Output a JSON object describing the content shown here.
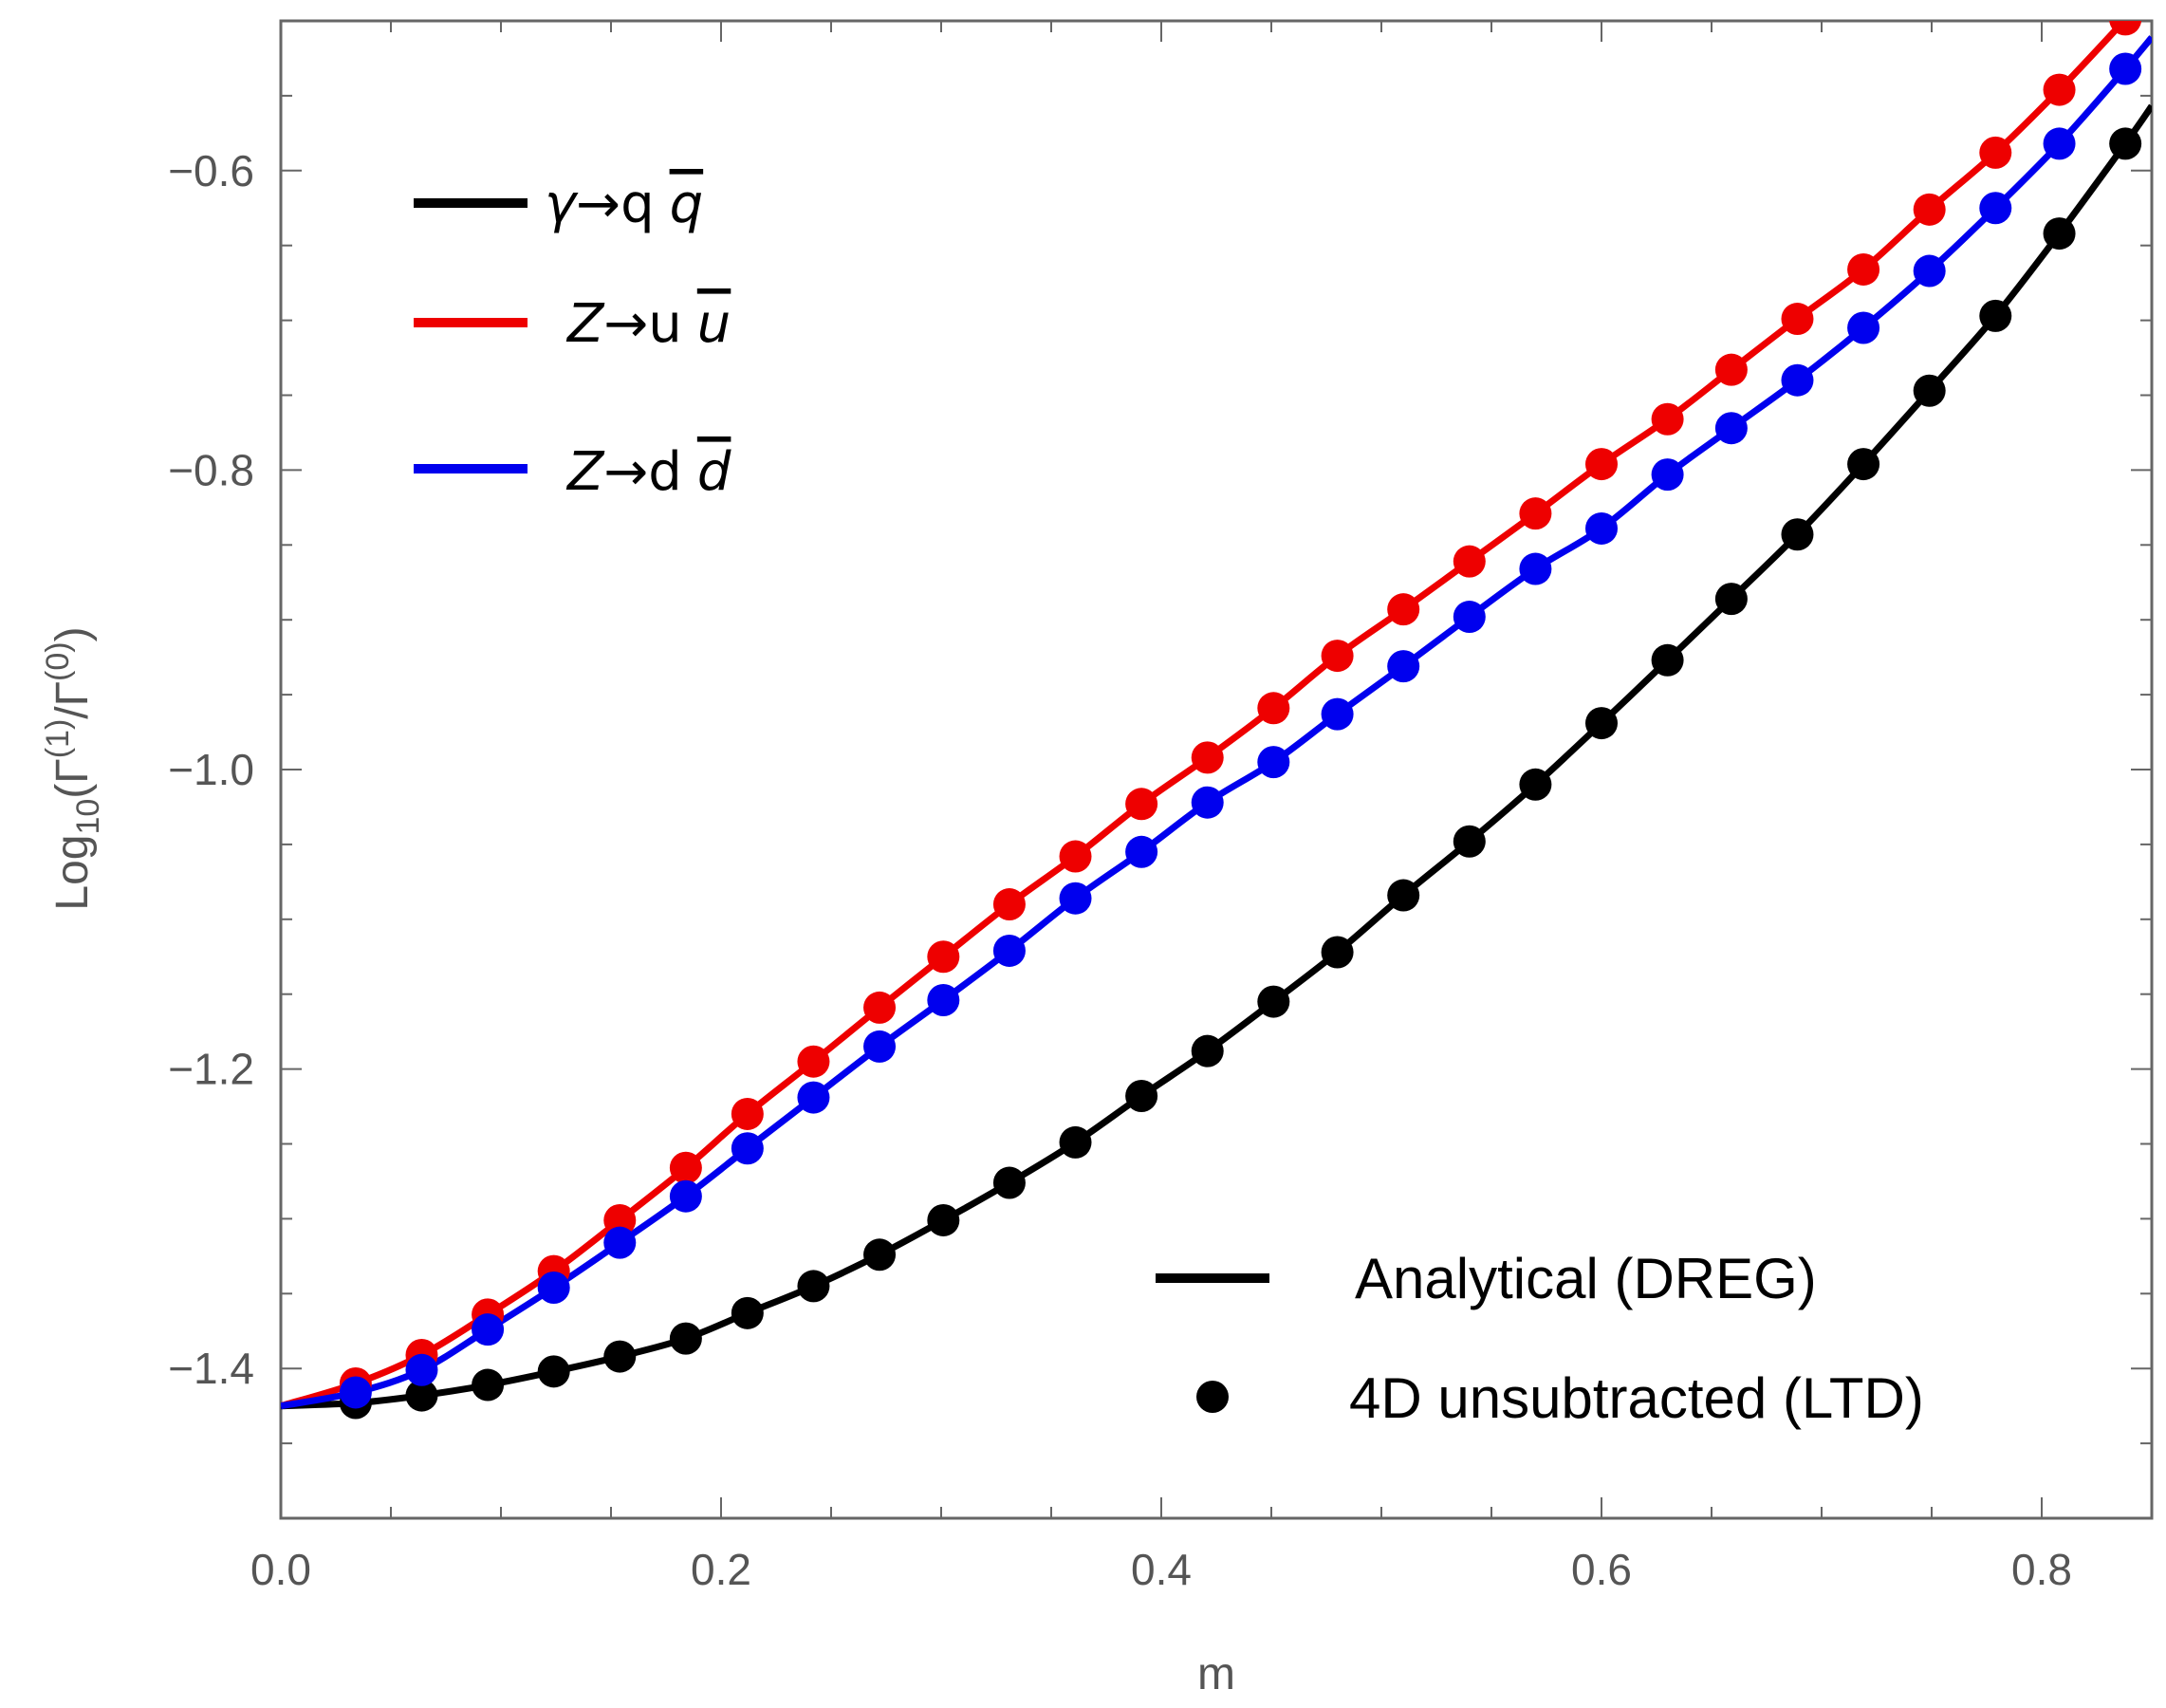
{
  "chart_data": {
    "type": "line",
    "title": "",
    "xlabel": "m",
    "ylabel_parts": {
      "prefix": "Log",
      "sub": "10",
      "open": "(",
      "gamma_num": "Γ",
      "sup_num": "(1)",
      "slash": "/",
      "gamma_den": "Γ",
      "sup_den": "(0)",
      "close": ")"
    },
    "xlim": [
      0.0,
      0.85
    ],
    "ylim": [
      -1.5,
      -0.5
    ],
    "x_ticks": [
      0.0,
      0.2,
      0.4,
      0.6,
      0.8
    ],
    "x_tick_labels": [
      "0.0",
      "0.2",
      "0.4",
      "0.6",
      "0.8"
    ],
    "y_ticks": [
      -1.4,
      -1.2,
      -1.0,
      -0.8,
      -0.6
    ],
    "y_tick_labels": [
      "−1.4",
      "−1.2",
      "−1.0",
      "−0.8",
      "−0.6"
    ],
    "grid": false,
    "series": [
      {
        "name": "γ→q q̄",
        "color": "#000000",
        "points_x": [
          0.034,
          0.064,
          0.094,
          0.124,
          0.154,
          0.184,
          0.212,
          0.242,
          0.272,
          0.301,
          0.331,
          0.361,
          0.391,
          0.421,
          0.451,
          0.48,
          0.51,
          0.54,
          0.57,
          0.6,
          0.63,
          0.659,
          0.689,
          0.719,
          0.749,
          0.779,
          0.808,
          0.838
        ],
        "points_y": [
          -1.423,
          -1.418,
          -1.411,
          -1.402,
          -1.392,
          -1.38,
          -1.363,
          -1.345,
          -1.324,
          -1.301,
          -1.276,
          -1.249,
          -1.218,
          -1.188,
          -1.155,
          -1.122,
          -1.084,
          -1.048,
          -1.01,
          -0.969,
          -0.927,
          -0.886,
          -0.843,
          -0.796,
          -0.747,
          -0.697,
          -0.642,
          -0.582
        ]
      },
      {
        "name": "Z→u ū",
        "color": "#ee0000",
        "points_x": [
          0.034,
          0.064,
          0.094,
          0.124,
          0.154,
          0.184,
          0.212,
          0.242,
          0.272,
          0.301,
          0.331,
          0.361,
          0.391,
          0.421,
          0.451,
          0.48,
          0.51,
          0.54,
          0.57,
          0.6,
          0.63,
          0.659,
          0.689,
          0.719,
          0.749,
          0.779,
          0.808,
          0.838
        ],
        "points_y": [
          -1.41,
          -1.391,
          -1.364,
          -1.335,
          -1.301,
          -1.266,
          -1.23,
          -1.195,
          -1.159,
          -1.125,
          -1.09,
          -1.058,
          -1.023,
          -0.992,
          -0.959,
          -0.924,
          -0.893,
          -0.861,
          -0.829,
          -0.796,
          -0.766,
          -0.733,
          -0.699,
          -0.666,
          -0.626,
          -0.588,
          -0.546,
          -0.499
        ]
      },
      {
        "name": "Z→d d̄",
        "color": "#0000ee",
        "points_x": [
          0.034,
          0.064,
          0.094,
          0.124,
          0.154,
          0.184,
          0.212,
          0.242,
          0.272,
          0.301,
          0.331,
          0.361,
          0.391,
          0.421,
          0.451,
          0.48,
          0.51,
          0.54,
          0.57,
          0.6,
          0.63,
          0.659,
          0.689,
          0.719,
          0.749,
          0.779,
          0.808,
          0.838
        ],
        "points_y": [
          -1.416,
          -1.401,
          -1.374,
          -1.346,
          -1.316,
          -1.285,
          -1.253,
          -1.219,
          -1.185,
          -1.154,
          -1.121,
          -1.086,
          -1.055,
          -1.022,
          -0.995,
          -0.963,
          -0.931,
          -0.898,
          -0.866,
          -0.839,
          -0.803,
          -0.772,
          -0.74,
          -0.705,
          -0.667,
          -0.625,
          -0.582,
          -0.532
        ]
      }
    ],
    "legend_top": {
      "placement": "top-left",
      "entries": [
        {
          "series": 0,
          "a": "γ",
          "arrow": "→",
          "b": "q",
          "bar": "q"
        },
        {
          "series": 1,
          "a": "Z",
          "arrow": "→",
          "b": "u",
          "bar": "u"
        },
        {
          "series": 2,
          "a": "Z",
          "arrow": "→",
          "b": "d",
          "bar": "d"
        }
      ]
    },
    "legend_bottom": {
      "placement": "bottom-right",
      "line_label": "Analytical (DREG)",
      "marker_label": "4D unsubtracted (LTD)"
    }
  }
}
